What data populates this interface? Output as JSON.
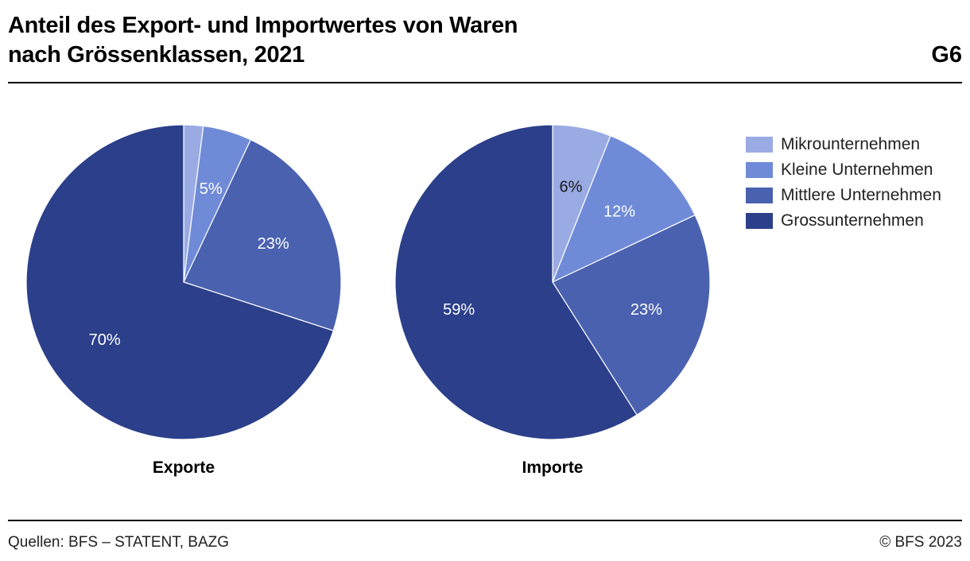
{
  "header": {
    "title_line1": "Anteil des Export- und Importwertes von Waren",
    "title_line2": "nach Grössenklassen, 2021",
    "graphic_number": "G6"
  },
  "footer": {
    "source": "Quellen: BFS – STATENT, BAZG",
    "copyright": "© BFS 2023"
  },
  "chart_data": [
    {
      "type": "pie",
      "title": "Exporte",
      "categories": [
        "Mikrounternehmen",
        "Kleine Unternehmen",
        "Mittlere Unternehmen",
        "Grossunternehmen"
      ],
      "values": [
        2,
        5,
        23,
        70
      ],
      "labels": [
        "",
        "5%",
        "23%",
        "70%"
      ]
    },
    {
      "type": "pie",
      "title": "Importe",
      "categories": [
        "Mikrounternehmen",
        "Kleine Unternehmen",
        "Mittlere Unternehmen",
        "Grossunternehmen"
      ],
      "values": [
        6,
        12,
        23,
        59
      ],
      "labels": [
        "6%",
        "12%",
        "23%",
        "59%"
      ]
    }
  ],
  "legend": {
    "placement": "right",
    "items": [
      {
        "label": "Mikrounternehmen",
        "color": "#9aabe4"
      },
      {
        "label": "Kleine Unternehmen",
        "color": "#6f8bd8"
      },
      {
        "label": "Mittlere Unternehmen",
        "color": "#4a61b0"
      },
      {
        "label": "Grossunternehmen",
        "color": "#2b3f8a"
      }
    ]
  },
  "label_colors": [
    "#1a1a1a",
    "#ffffff",
    "#ffffff",
    "#ffffff"
  ]
}
